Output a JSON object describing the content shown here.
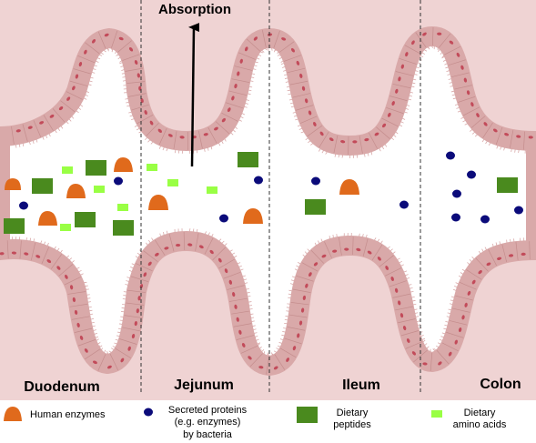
{
  "title": "Absorption",
  "regions": [
    "Duodenum",
    "Jejunum",
    "Ileum",
    "Colon"
  ],
  "legend": [
    {
      "key": "human_enzyme",
      "lines": [
        "Human enzymes"
      ],
      "color": "#e06a1c"
    },
    {
      "key": "bacterial_protein",
      "lines": [
        "Secreted proteins",
        "(e.g. enzymes)",
        "by bacteria"
      ],
      "color": "#0b0b7a"
    },
    {
      "key": "peptide",
      "lines": [
        "Dietary",
        "peptides"
      ],
      "color": "#4a8a1e"
    },
    {
      "key": "amino_acid",
      "lines": [
        "Dietary",
        "amino acids"
      ],
      "color": "#99ff44"
    }
  ],
  "colors": {
    "tissue": "#efd3d3",
    "epithelium": "#d9a9a9",
    "epithelium_edge": "#c48d8d",
    "nucleus": "#c24b5a",
    "lumen": "#ffffff"
  }
}
